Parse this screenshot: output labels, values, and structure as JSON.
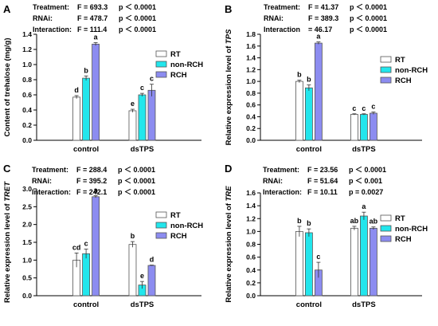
{
  "legend": [
    {
      "name": "RT",
      "color": "#ffffff"
    },
    {
      "name": "non-RCH",
      "color": "#22e6ec"
    },
    {
      "name": "RCH",
      "color": "#8c8cf0"
    }
  ],
  "chart_data": [
    {
      "panel": "A",
      "type": "bar",
      "categories": [
        "control",
        "dsTPS"
      ],
      "series": [
        {
          "name": "RT",
          "values": [
            0.57,
            0.39
          ],
          "errors": [
            0.02,
            0.02
          ],
          "letters": [
            "d",
            "e"
          ]
        },
        {
          "name": "non-RCH",
          "values": [
            0.82,
            0.6
          ],
          "errors": [
            0.03,
            0.02
          ],
          "letters": [
            "b",
            "c"
          ]
        },
        {
          "name": "RCH",
          "values": [
            1.27,
            0.66
          ],
          "errors": [
            0.02,
            0.08
          ],
          "letters": [
            "a",
            "c"
          ]
        }
      ],
      "ylabel": "Content of trehalose (mg/g)",
      "ylim": [
        0,
        1.4
      ],
      "yticks": [
        "0.0",
        "0.2",
        "0.4",
        "0.6",
        "0.8",
        "1.0",
        "1.2",
        "1.4"
      ],
      "stats": [
        {
          "term": "Treatment:",
          "stat": "F = 693.3",
          "p": "p ＜ 0.0001"
        },
        {
          "term": "RNAi:",
          "stat": "F = 478.7",
          "p": "p ＜ 0.0001"
        },
        {
          "term": "Interaction:",
          "stat": "F = 111.4",
          "p": "p ＜ 0.0001"
        }
      ],
      "legend_position": "right"
    },
    {
      "panel": "B",
      "type": "bar",
      "categories": [
        "control",
        "dsTPS"
      ],
      "series": [
        {
          "name": "RT",
          "values": [
            1.0,
            0.44
          ],
          "errors": [
            0.02,
            0.01
          ],
          "letters": [
            "b",
            "c"
          ]
        },
        {
          "name": "non-RCH",
          "values": [
            0.89,
            0.44
          ],
          "errors": [
            0.05,
            0.01
          ],
          "letters": [
            "b",
            "c"
          ]
        },
        {
          "name": "RCH",
          "values": [
            1.65,
            0.46
          ],
          "errors": [
            0.02,
            0.02
          ],
          "letters": [
            "a",
            "c"
          ]
        }
      ],
      "ylabel_prefix": "Relative expression level of ",
      "ylabel_gene": "TPS",
      "ylim": [
        0,
        1.8
      ],
      "yticks": [
        "0.0",
        "0.2",
        "0.4",
        "0.6",
        "0.8",
        "1.0",
        "1.2",
        "1.4",
        "1.6",
        "1.8"
      ],
      "stats": [
        {
          "term": "Treatment:",
          "stat": "F = 41.37",
          "p": "p ＜ 0.0001"
        },
        {
          "term": "RNAi:",
          "stat": "F = 389.3",
          "p": "p ＜ 0.0001"
        },
        {
          "term": "Interaction",
          "stat": "= 46.17",
          "p": "p ＜ 0.0001"
        }
      ],
      "legend_position": "right"
    },
    {
      "panel": "C",
      "type": "bar",
      "categories": [
        "control",
        "dsTPS"
      ],
      "series": [
        {
          "name": "RT",
          "values": [
            1.0,
            1.44
          ],
          "errors": [
            0.2,
            0.08
          ],
          "letters": [
            "cd",
            "b"
          ]
        },
        {
          "name": "non-RCH",
          "values": [
            1.18,
            0.3
          ],
          "errors": [
            0.13,
            0.1
          ],
          "letters": [
            "c",
            "e"
          ]
        },
        {
          "name": "RCH",
          "values": [
            2.78,
            0.85
          ],
          "errors": [
            0.03,
            0.01
          ],
          "letters": [
            "a",
            "d"
          ]
        }
      ],
      "ylabel_prefix": "Relative expression level of ",
      "ylabel_gene": "TRET",
      "ylim": [
        0,
        3.0
      ],
      "yticks": [
        "0.0",
        "0.5",
        "1.0",
        "1.5",
        "2.0",
        "2.5",
        "3.0"
      ],
      "stats": [
        {
          "term": "Treatment:",
          "stat": "F = 288.4",
          "p": "p ＜ 0.0001"
        },
        {
          "term": "RNAi:",
          "stat": "F = 395.2",
          "p": "p ＜ 0.0001"
        },
        {
          "term": "Interaction:",
          "stat": "F = 242.1",
          "p": "p ＜ 0.0001"
        }
      ],
      "legend_position": "right"
    },
    {
      "panel": "D",
      "type": "bar",
      "categories": [
        "control",
        "dsTPS"
      ],
      "series": [
        {
          "name": "RT",
          "values": [
            1.0,
            1.05
          ],
          "errors": [
            0.08,
            0.03
          ],
          "letters": [
            "b",
            "ab"
          ]
        },
        {
          "name": "non-RCH",
          "values": [
            0.98,
            1.24
          ],
          "errors": [
            0.06,
            0.06
          ],
          "letters": [
            "b",
            "a"
          ]
        },
        {
          "name": "RCH",
          "values": [
            0.4,
            1.05
          ],
          "errors": [
            0.12,
            0.02
          ],
          "letters": [
            "c",
            "ab"
          ]
        }
      ],
      "ylabel_prefix": "Relative expression level of ",
      "ylabel_gene": "TRE",
      "ylim": [
        0,
        1.6
      ],
      "yticks": [
        "0.0",
        "0.2",
        "0.4",
        "0.6",
        "0.8",
        "1.0",
        "1.2",
        "1.4",
        "1.6"
      ],
      "stats": [
        {
          "term": "Treatment:",
          "stat": "F = 23.56",
          "p": "p ＜ 0.0001"
        },
        {
          "term": "RNAi:",
          "stat": "F = 51.64",
          "p": "p ＜ 0.001"
        },
        {
          "term": "Interaction:",
          "stat": "F = 10.11",
          "p": "p = 0.0027"
        }
      ],
      "legend_position": "right"
    }
  ]
}
